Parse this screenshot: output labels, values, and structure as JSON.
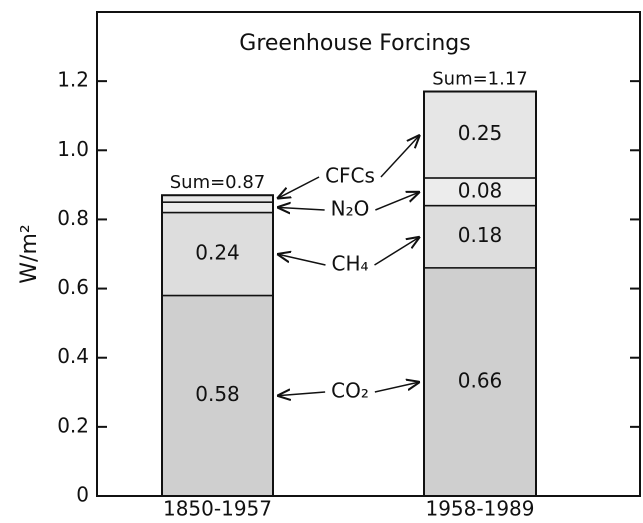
{
  "chart_data": {
    "type": "stacked_bar",
    "title": "Greenhouse Forcings",
    "y_label": "W/m²",
    "categories": [
      "1850-1957",
      "1958-1989"
    ],
    "series": [
      {
        "name": "CO₂",
        "color": "#cfcfcf",
        "values": [
          0.58,
          0.66
        ],
        "value_labels": [
          "0.58",
          "0.66"
        ]
      },
      {
        "name": "CH₄",
        "color": "#dddddd",
        "values": [
          0.24,
          0.18
        ],
        "value_labels": [
          "0.24",
          "0.18"
        ]
      },
      {
        "name": "N₂O",
        "color": "#ececec",
        "values": [
          0.03,
          0.08
        ],
        "value_labels": [
          null,
          "0.08"
        ]
      },
      {
        "name": "CFCs",
        "color": "#e6e6e6",
        "values": [
          0.02,
          0.25
        ],
        "value_labels": [
          null,
          "0.25"
        ]
      }
    ],
    "total_labels": [
      "Sum=0.87",
      "Sum=1.17"
    ],
    "ylim": [
      0,
      1.4
    ],
    "yticks": [
      0,
      0.2,
      0.4,
      0.6,
      0.8,
      {
        "value": 1,
        "label": "1.0"
      },
      1.2
    ]
  }
}
